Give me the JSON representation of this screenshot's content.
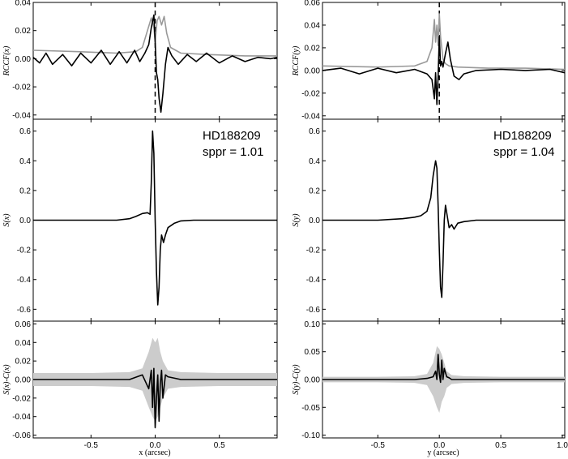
{
  "chart_data": [
    {
      "id": "left",
      "type": "line",
      "xlabel": "x (arcsec)",
      "xlim": [
        -0.95,
        0.95
      ],
      "xticks": [
        -0.5,
        0.0,
        0.5
      ],
      "xtick_labels": [
        "-0.5",
        "0.0",
        "0.5"
      ],
      "star": "HD188209",
      "sppr": "sppr = 1.01",
      "panels": {
        "rccf": {
          "ylabel": "RCCF(x)",
          "ylim": [
            -0.043,
            0.04
          ],
          "yticks": [
            -0.04,
            -0.02,
            0.0,
            0.02,
            0.04
          ],
          "ytick_labels": [
            "-0.04",
            "-0.02",
            "0.00",
            "0.02",
            "0.04"
          ],
          "dashed_x": 0.0,
          "series": [
            {
              "color": "#999999",
              "x": [
                -0.95,
                -0.6,
                -0.3,
                -0.15,
                -0.1,
                -0.06,
                -0.03,
                -0.01,
                0.0,
                0.015,
                0.03,
                0.05,
                0.07,
                0.09,
                0.12,
                0.2,
                0.4,
                0.7,
                0.95
              ],
              "y": [
                0.006,
                0.005,
                0.004,
                0.005,
                0.008,
                0.02,
                0.029,
                0.022,
                0.012,
                0.027,
                0.03,
                0.024,
                0.03,
                0.018,
                0.008,
                0.004,
                0.003,
                0.002,
                0.002
              ]
            },
            {
              "color": "#000000",
              "x": [
                -0.95,
                -0.9,
                -0.85,
                -0.8,
                -0.72,
                -0.65,
                -0.58,
                -0.5,
                -0.42,
                -0.35,
                -0.28,
                -0.22,
                -0.16,
                -0.12,
                -0.08,
                -0.05,
                -0.03,
                -0.01,
                0.0,
                0.01,
                0.02,
                0.03,
                0.045,
                0.06,
                0.08,
                0.1,
                0.13,
                0.18,
                0.25,
                0.32,
                0.4,
                0.5,
                0.6,
                0.7,
                0.8,
                0.9,
                0.95
              ],
              "y": [
                0.001,
                -0.003,
                0.004,
                -0.004,
                0.003,
                -0.005,
                0.004,
                -0.003,
                0.006,
                -0.004,
                0.005,
                -0.003,
                0.006,
                -0.002,
                0.004,
                0.01,
                0.022,
                0.031,
                0.012,
                -0.01,
                -0.015,
                -0.028,
                -0.038,
                -0.025,
                -0.004,
                0.008,
                0.002,
                -0.004,
                0.003,
                -0.002,
                0.004,
                -0.003,
                0.002,
                -0.002,
                0.001,
                0.0,
                0.001
              ]
            }
          ]
        },
        "s": {
          "ylabel": "S(x)",
          "ylim": [
            -0.68,
            0.68
          ],
          "yticks": [
            -0.6,
            -0.4,
            -0.2,
            0.0,
            0.2,
            0.4,
            0.6
          ],
          "ytick_labels": [
            "-0.6",
            "-0.4",
            "-0.2",
            "0.0",
            "0.2",
            "0.4",
            "0.6"
          ],
          "series": [
            {
              "color": "#000000",
              "x": [
                -0.95,
                -0.6,
                -0.3,
                -0.2,
                -0.15,
                -0.1,
                -0.06,
                -0.04,
                -0.03,
                -0.02,
                -0.01,
                0.0,
                0.01,
                0.02,
                0.03,
                0.04,
                0.05,
                0.065,
                0.08,
                0.1,
                0.15,
                0.2,
                0.3,
                0.6,
                0.95
              ],
              "y": [
                0.0,
                0.0,
                0.0,
                0.01,
                0.025,
                0.045,
                0.05,
                0.04,
                0.25,
                0.6,
                0.45,
                0.0,
                -0.35,
                -0.57,
                -0.45,
                -0.2,
                -0.1,
                -0.15,
                -0.1,
                -0.05,
                -0.02,
                -0.005,
                0.0,
                0.0,
                0.0
              ]
            }
          ]
        },
        "diff": {
          "ylabel": "S(x)-C(x)",
          "ylim": [
            -0.063,
            0.063
          ],
          "yticks": [
            -0.06,
            -0.04,
            -0.02,
            0.0,
            0.02,
            0.04,
            0.06
          ],
          "ytick_labels": [
            "-0.06",
            "-0.04",
            "-0.02",
            "0.00",
            "0.02",
            "0.04",
            "0.06"
          ],
          "band": {
            "color": "#cccccc",
            "x": [
              -0.95,
              -0.5,
              -0.2,
              -0.1,
              -0.05,
              -0.02,
              0.0,
              0.02,
              0.04,
              0.06,
              0.1,
              0.2,
              0.5,
              0.95
            ],
            "lo": [
              -0.007,
              -0.007,
              -0.008,
              -0.012,
              -0.03,
              -0.04,
              -0.045,
              -0.04,
              -0.03,
              -0.02,
              -0.01,
              -0.008,
              -0.007,
              -0.007
            ],
            "hi": [
              0.007,
              0.007,
              0.008,
              0.012,
              0.03,
              0.045,
              0.04,
              0.045,
              0.03,
              0.02,
              0.01,
              0.008,
              0.007,
              0.007
            ]
          },
          "series": [
            {
              "color": "#000000",
              "x": [
                -0.95,
                -0.5,
                -0.2,
                -0.1,
                -0.05,
                -0.03,
                -0.02,
                -0.01,
                0.0,
                0.01,
                0.02,
                0.03,
                0.04,
                0.05,
                0.06,
                0.08,
                0.1,
                0.2,
                0.5,
                0.95
              ],
              "y": [
                0.0,
                0.0,
                0.0,
                0.005,
                -0.01,
                0.01,
                -0.03,
                0.012,
                -0.052,
                -0.02,
                0.005,
                -0.045,
                -0.005,
                0.01,
                -0.02,
                0.005,
                0.003,
                0.0,
                0.0,
                0.0
              ]
            }
          ]
        }
      }
    },
    {
      "id": "right",
      "type": "line",
      "xlabel": "y (arcsec)",
      "xlim": [
        -0.95,
        1.02
      ],
      "xticks": [
        -0.5,
        0.0,
        0.5,
        1.0
      ],
      "xtick_labels": [
        "-0.5",
        "0.0",
        "0.5",
        "1.0"
      ],
      "star": "HD188209",
      "sppr": "sppr = 1.04",
      "panels": {
        "rccf": {
          "ylabel": "RCCF(y)",
          "ylim": [
            -0.043,
            0.06
          ],
          "yticks": [
            -0.04,
            -0.02,
            0.0,
            0.02,
            0.04,
            0.06
          ],
          "ytick_labels": [
            "-0.04",
            "-0.02",
            "0.00",
            "0.02",
            "0.04",
            "0.06"
          ],
          "dashed_x": 0.0,
          "series": [
            {
              "color": "#999999",
              "x": [
                -0.95,
                -0.5,
                -0.2,
                -0.1,
                -0.06,
                -0.04,
                -0.03,
                -0.02,
                -0.01,
                0.0,
                0.01,
                0.02,
                0.03,
                0.05,
                0.08,
                0.15,
                0.4,
                0.7,
                1.02
              ],
              "y": [
                0.004,
                0.003,
                0.004,
                0.008,
                0.02,
                0.045,
                0.025,
                0.04,
                0.022,
                0.05,
                0.03,
                0.02,
                0.01,
                0.006,
                0.004,
                0.003,
                0.002,
                0.002,
                0.001
              ]
            },
            {
              "color": "#000000",
              "x": [
                -0.95,
                -0.8,
                -0.65,
                -0.5,
                -0.35,
                -0.2,
                -0.1,
                -0.06,
                -0.04,
                -0.03,
                -0.02,
                -0.01,
                0.0,
                0.01,
                0.02,
                0.03,
                0.05,
                0.07,
                0.09,
                0.12,
                0.16,
                0.2,
                0.3,
                0.5,
                0.7,
                0.9,
                1.02
              ],
              "y": [
                0.0,
                0.002,
                -0.003,
                0.002,
                -0.002,
                0.001,
                -0.003,
                -0.008,
                -0.025,
                -0.002,
                -0.03,
                -0.005,
                0.03,
                0.004,
                0.008,
                0.003,
                0.015,
                0.025,
                0.01,
                -0.005,
                -0.008,
                -0.003,
                0.0,
                0.001,
                0.0,
                0.001,
                -0.002
              ]
            }
          ]
        },
        "s": {
          "ylabel": "S(y)",
          "ylim": [
            -0.68,
            0.68
          ],
          "yticks": [
            -0.6,
            -0.4,
            -0.2,
            0.0,
            0.2,
            0.4,
            0.6
          ],
          "ytick_labels": [
            "-0.6",
            "-0.4",
            "-0.2",
            "0.0",
            "0.2",
            "0.4",
            "0.6"
          ],
          "series": [
            {
              "color": "#000000",
              "x": [
                -0.95,
                -0.5,
                -0.3,
                -0.2,
                -0.15,
                -0.1,
                -0.07,
                -0.05,
                -0.03,
                -0.02,
                -0.01,
                0.0,
                0.01,
                0.02,
                0.03,
                0.04,
                0.05,
                0.06,
                0.08,
                0.1,
                0.12,
                0.15,
                0.2,
                0.3,
                0.5,
                1.02
              ],
              "y": [
                0.0,
                0.0,
                0.01,
                0.02,
                0.03,
                0.06,
                0.15,
                0.3,
                0.4,
                0.35,
                0.1,
                -0.2,
                -0.45,
                -0.52,
                -0.3,
                0.0,
                0.1,
                0.05,
                -0.05,
                -0.03,
                -0.06,
                -0.02,
                -0.01,
                0.0,
                0.0,
                0.0
              ]
            }
          ]
        },
        "diff": {
          "ylabel": "S(y)-C(y)",
          "ylim": [
            -0.105,
            0.105
          ],
          "yticks": [
            -0.1,
            -0.05,
            0.0,
            0.05,
            0.1
          ],
          "ytick_labels": [
            "-0.10",
            "-0.05",
            "0.00",
            "0.05",
            "0.10"
          ],
          "band": {
            "color": "#cccccc",
            "x": [
              -0.95,
              -0.5,
              -0.2,
              -0.1,
              -0.05,
              -0.02,
              0.0,
              0.02,
              0.04,
              0.06,
              0.1,
              0.2,
              0.5,
              1.02
            ],
            "lo": [
              -0.005,
              -0.005,
              -0.006,
              -0.01,
              -0.03,
              -0.05,
              -0.06,
              -0.04,
              -0.03,
              -0.015,
              -0.008,
              -0.006,
              -0.005,
              -0.005
            ],
            "hi": [
              0.005,
              0.005,
              0.006,
              0.01,
              0.03,
              0.06,
              0.055,
              0.045,
              0.03,
              0.015,
              0.008,
              0.006,
              0.005,
              0.005
            ]
          },
          "series": [
            {
              "color": "#000000",
              "x": [
                -0.95,
                -0.5,
                -0.2,
                -0.1,
                -0.05,
                -0.03,
                -0.02,
                -0.01,
                0.0,
                0.01,
                0.02,
                0.03,
                0.04,
                0.06,
                0.08,
                0.1,
                0.2,
                0.5,
                1.02
              ],
              "y": [
                0.0,
                0.0,
                0.0,
                0.002,
                0.005,
                0.015,
                0.0,
                0.045,
                0.01,
                -0.005,
                0.035,
                0.0,
                0.02,
                0.005,
                0.003,
                0.0,
                0.0,
                0.0,
                0.0
              ]
            }
          ]
        }
      }
    }
  ]
}
